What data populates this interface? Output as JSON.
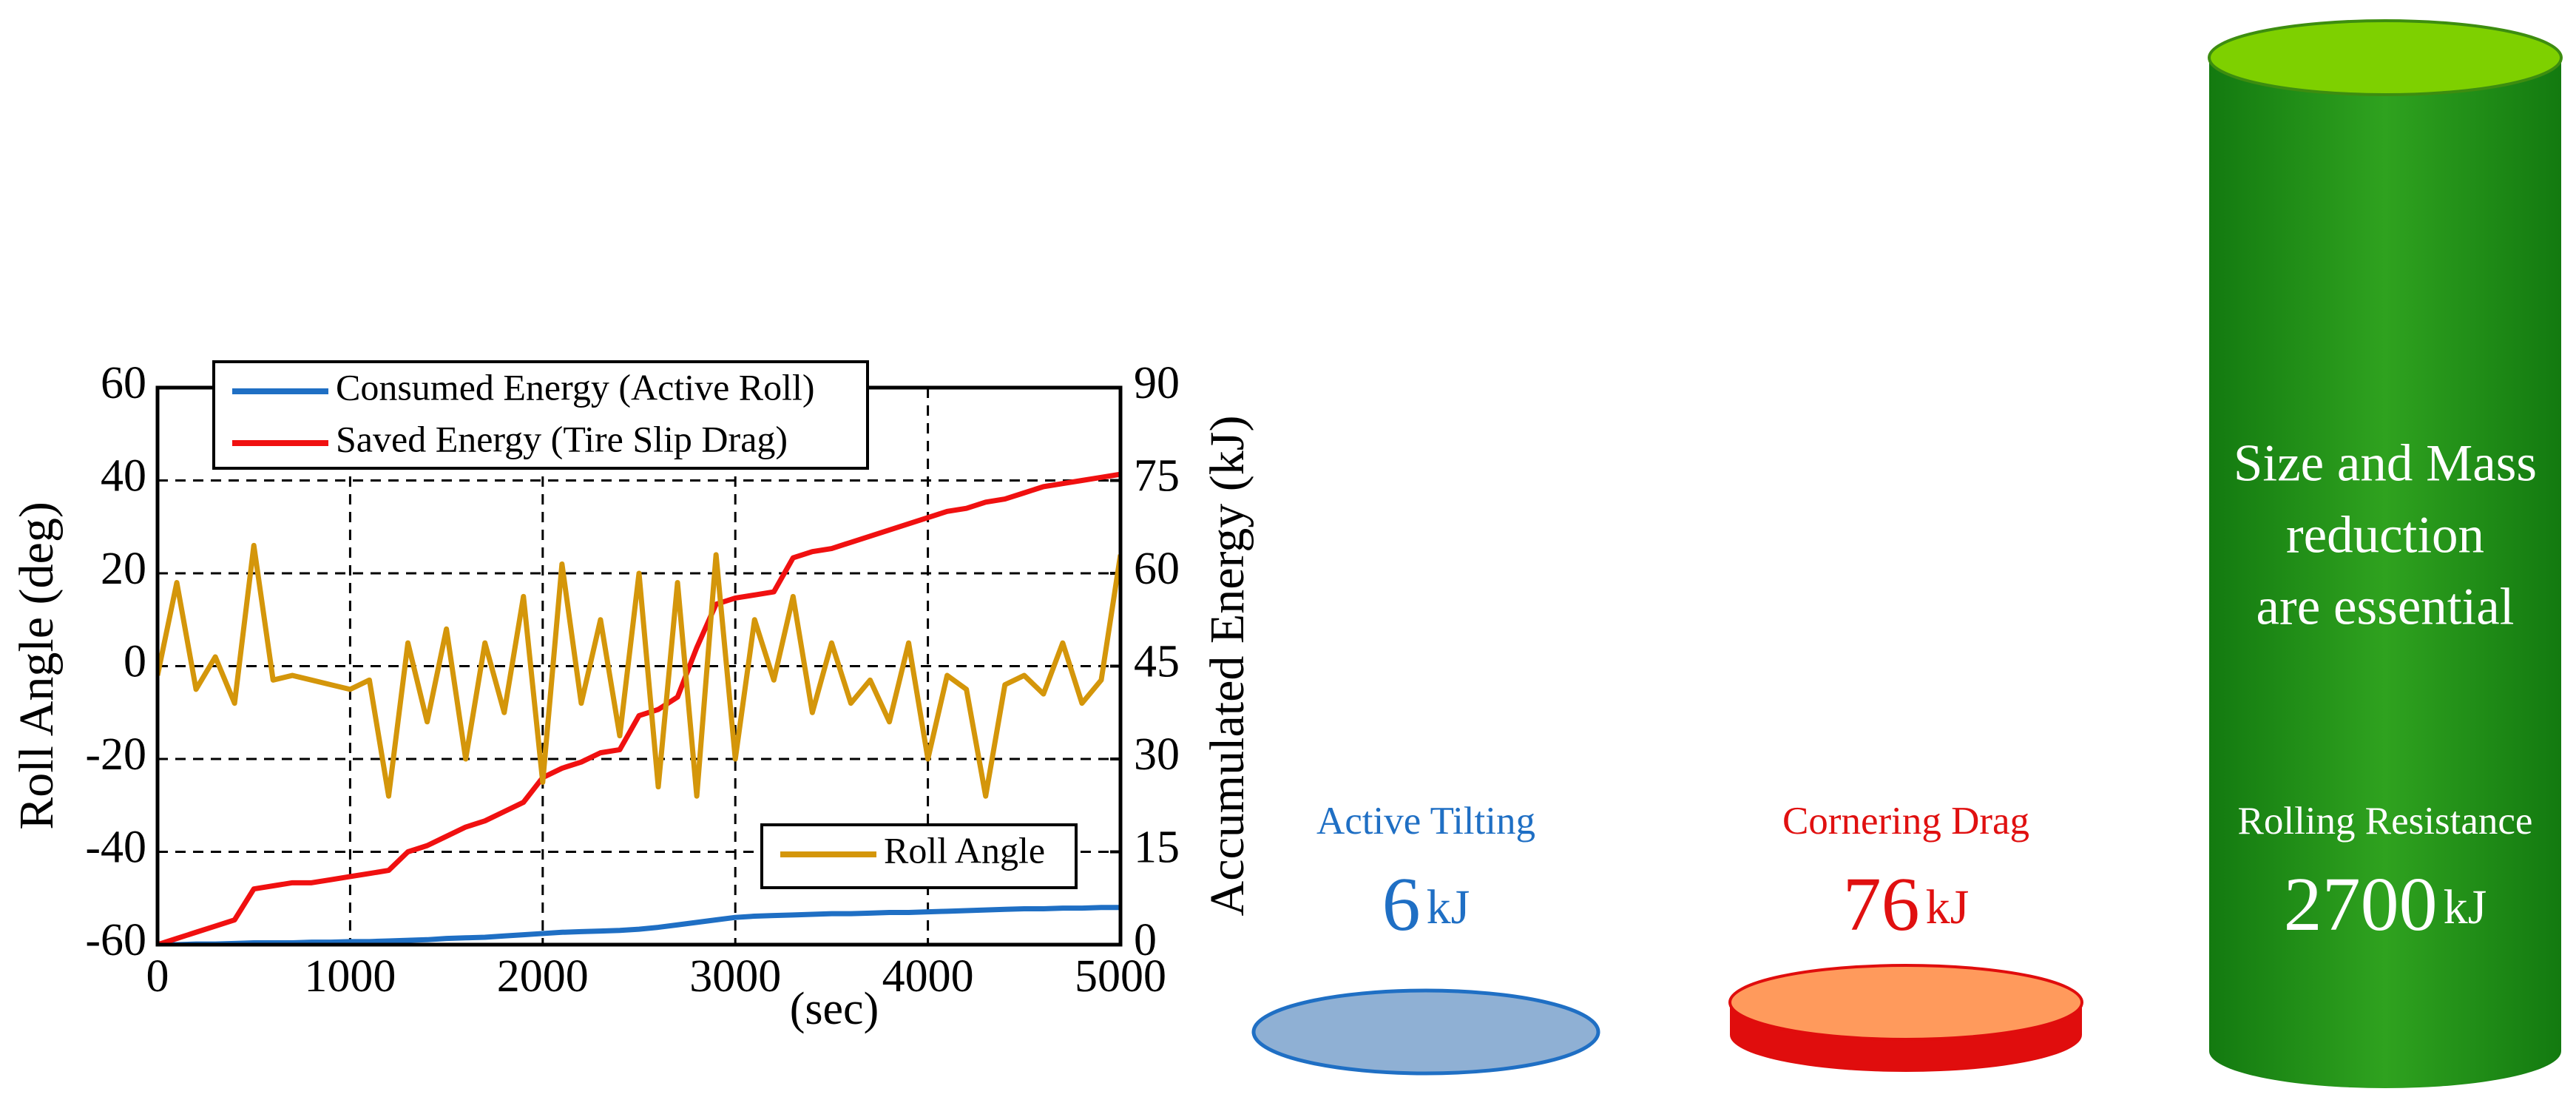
{
  "chart_data": {
    "type": "line",
    "xlabel": "(sec)",
    "ylabel": "Roll Angle (deg)",
    "y2label": "Accumulated Energy (kJ)",
    "x": [
      0,
      100,
      200,
      300,
      400,
      500,
      600,
      700,
      800,
      900,
      1000,
      1100,
      1200,
      1300,
      1400,
      1500,
      1600,
      1700,
      1800,
      1900,
      2000,
      2100,
      2200,
      2300,
      2400,
      2500,
      2600,
      2700,
      2800,
      2900,
      3000,
      3100,
      3200,
      3300,
      3400,
      3500,
      3600,
      3700,
      3800,
      3900,
      4000,
      4100,
      4200,
      4300,
      4400,
      4500,
      4600,
      4700,
      4800,
      4900,
      5000
    ],
    "series": [
      {
        "name": "Consumed Energy (Active Roll)",
        "color": "#1f6fc4",
        "axis": "y2",
        "values": [
          0,
          0,
          0.1,
          0.1,
          0.2,
          0.3,
          0.3,
          0.3,
          0.4,
          0.4,
          0.5,
          0.5,
          0.6,
          0.7,
          0.8,
          1,
          1.1,
          1.2,
          1.4,
          1.6,
          1.8,
          2,
          2.1,
          2.2,
          2.3,
          2.5,
          2.8,
          3.2,
          3.6,
          4,
          4.4,
          4.6,
          4.7,
          4.8,
          4.9,
          5,
          5,
          5.1,
          5.2,
          5.2,
          5.3,
          5.4,
          5.5,
          5.6,
          5.7,
          5.8,
          5.8,
          5.9,
          5.9,
          6,
          6
        ]
      },
      {
        "name": "Saved Energy (Tire Slip Drag)",
        "color": "#f01010",
        "axis": "y2",
        "values": [
          0,
          1,
          2,
          3,
          4,
          9,
          9.5,
          10,
          10,
          10.5,
          11,
          11.5,
          12,
          15,
          16,
          17.5,
          19,
          20,
          21.5,
          23,
          27,
          28.5,
          29.5,
          31,
          31.5,
          37,
          38,
          40,
          48,
          55,
          56,
          56.5,
          57,
          62.5,
          63.5,
          64,
          65,
          66,
          67,
          68,
          69,
          70,
          70.5,
          71.5,
          72,
          73,
          74,
          74.5,
          75,
          75.5,
          76
        ]
      },
      {
        "name": "Roll Angle",
        "color": "#d4960a",
        "axis": "y",
        "values": [
          -2,
          18,
          -5,
          2,
          -8,
          26,
          -3,
          -2,
          -3,
          -4,
          -5,
          -3,
          -28,
          5,
          -12,
          8,
          -20,
          5,
          -10,
          15,
          -25,
          22,
          -8,
          10,
          -15,
          20,
          -26,
          18,
          -28,
          24,
          -20,
          10,
          -3,
          15,
          -10,
          5,
          -8,
          -3,
          -12,
          5,
          -20,
          -2,
          -5,
          -28,
          -4,
          -2,
          -6,
          5,
          -8,
          -3,
          24
        ]
      }
    ],
    "xlim": [
      0,
      5000
    ],
    "xticks": [
      0,
      1000,
      2000,
      3000,
      4000,
      5000
    ],
    "ylim": [
      -60,
      60
    ],
    "yticks": [
      -60,
      -40,
      -20,
      0,
      20,
      40,
      60
    ],
    "y2lim": [
      0,
      90
    ],
    "y2ticks": [
      0,
      15,
      30,
      45,
      60,
      75,
      90
    ],
    "grid": true
  },
  "energy_items": [
    {
      "label": "Active Tilting",
      "value": "6",
      "unit": "kJ",
      "color": "#1f6fc4"
    },
    {
      "label": "Cornering Drag",
      "value": "76",
      "unit": "kJ",
      "color": "#e01010"
    },
    {
      "label": "Rolling Resistance",
      "value": "2700",
      "unit": "kJ",
      "color": "#ffffff"
    }
  ],
  "note": [
    "Size and Mass",
    "reduction",
    "are essential"
  ]
}
